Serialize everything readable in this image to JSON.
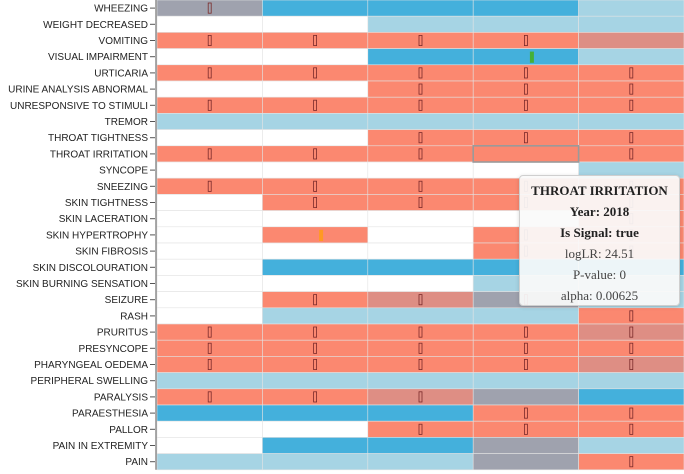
{
  "chart_data": {
    "type": "heatmap",
    "x": [
      "c1",
      "c2",
      "c3",
      "c4",
      "c5"
    ],
    "rows": [
      {
        "label": "WHEEZING",
        "cells": [
          "G",
          "B",
          "B",
          "B",
          "L"
        ],
        "marks": [
          1,
          0,
          0,
          0,
          0
        ]
      },
      {
        "label": "WEIGHT DECREASED",
        "cells": [
          "W",
          "W",
          "L",
          "L",
          "L"
        ],
        "marks": [
          0,
          0,
          0,
          0,
          0
        ]
      },
      {
        "label": "VOMITING",
        "cells": [
          "S",
          "S",
          "S",
          "S",
          "D"
        ],
        "marks": [
          1,
          1,
          1,
          1,
          0
        ]
      },
      {
        "label": "VISUAL IMPAIRMENT",
        "cells": [
          "W",
          "W",
          "B",
          "B",
          "L"
        ],
        "marks": [
          0,
          0,
          0,
          0,
          0
        ]
      },
      {
        "label": "URTICARIA",
        "cells": [
          "S",
          "S",
          "S",
          "S",
          "S"
        ],
        "marks": [
          1,
          1,
          1,
          1,
          1
        ]
      },
      {
        "label": "URINE ANALYSIS ABNORMAL",
        "cells": [
          "W",
          "W",
          "S",
          "S",
          "S"
        ],
        "marks": [
          0,
          0,
          1,
          1,
          1
        ]
      },
      {
        "label": "UNRESPONSIVE TO STIMULI",
        "cells": [
          "S",
          "S",
          "S",
          "S",
          "S"
        ],
        "marks": [
          1,
          1,
          1,
          1,
          1
        ]
      },
      {
        "label": "TREMOR",
        "cells": [
          "L",
          "L",
          "L",
          "L",
          "L"
        ],
        "marks": [
          0,
          0,
          0,
          0,
          0
        ]
      },
      {
        "label": "THROAT TIGHTNESS",
        "cells": [
          "W",
          "W",
          "S",
          "S",
          "S"
        ],
        "marks": [
          0,
          0,
          1,
          1,
          1
        ]
      },
      {
        "label": "THROAT IRRITATION",
        "cells": [
          "S",
          "S",
          "S",
          "S",
          "S"
        ],
        "marks": [
          1,
          1,
          1,
          0,
          1
        ]
      },
      {
        "label": "SYNCOPE",
        "cells": [
          "W",
          "W",
          "W",
          "W",
          "L"
        ],
        "marks": [
          0,
          0,
          0,
          0,
          0
        ]
      },
      {
        "label": "SNEEZING",
        "cells": [
          "S",
          "S",
          "S",
          "S",
          "S"
        ],
        "marks": [
          1,
          1,
          1,
          1,
          1
        ]
      },
      {
        "label": "SKIN TIGHTNESS",
        "cells": [
          "W",
          "S",
          "S",
          "S",
          "S"
        ],
        "marks": [
          0,
          1,
          1,
          1,
          1
        ]
      },
      {
        "label": "SKIN LACERATION",
        "cells": [
          "W",
          "W",
          "W",
          "W",
          "S"
        ],
        "marks": [
          0,
          0,
          0,
          0,
          1
        ]
      },
      {
        "label": "SKIN HYPERTROPHY",
        "cells": [
          "W",
          "S",
          "W",
          "S",
          "S"
        ],
        "marks": [
          0,
          0,
          0,
          1,
          1
        ]
      },
      {
        "label": "SKIN FIBROSIS",
        "cells": [
          "W",
          "W",
          "W",
          "S",
          "S"
        ],
        "marks": [
          0,
          0,
          0,
          1,
          1
        ]
      },
      {
        "label": "SKIN DISCOLOURATION",
        "cells": [
          "W",
          "B",
          "B",
          "B",
          "B"
        ],
        "marks": [
          0,
          0,
          0,
          0,
          0
        ]
      },
      {
        "label": "SKIN BURNING SENSATION",
        "cells": [
          "W",
          "W",
          "W",
          "L",
          "L"
        ],
        "marks": [
          0,
          0,
          0,
          0,
          0
        ]
      },
      {
        "label": "SEIZURE",
        "cells": [
          "W",
          "S",
          "D",
          "G",
          "L"
        ],
        "marks": [
          0,
          1,
          1,
          1,
          0
        ]
      },
      {
        "label": "RASH",
        "cells": [
          "W",
          "L",
          "L",
          "L",
          "S"
        ],
        "marks": [
          0,
          0,
          0,
          0,
          1
        ]
      },
      {
        "label": "PRURITUS",
        "cells": [
          "S",
          "S",
          "S",
          "S",
          "D"
        ],
        "marks": [
          1,
          1,
          1,
          1,
          1
        ]
      },
      {
        "label": "PRESYNCOPE",
        "cells": [
          "S",
          "S",
          "S",
          "S",
          "S"
        ],
        "marks": [
          1,
          1,
          1,
          1,
          1
        ]
      },
      {
        "label": "PHARYNGEAL OEDEMA",
        "cells": [
          "S",
          "S",
          "S",
          "S",
          "D"
        ],
        "marks": [
          1,
          1,
          1,
          1,
          1
        ]
      },
      {
        "label": "PERIPHERAL SWELLING",
        "cells": [
          "L",
          "L",
          "L",
          "L",
          "L"
        ],
        "marks": [
          0,
          0,
          0,
          0,
          0
        ]
      },
      {
        "label": "PARALYSIS",
        "cells": [
          "S",
          "S",
          "D",
          "G",
          "B"
        ],
        "marks": [
          1,
          1,
          1,
          0,
          0
        ]
      },
      {
        "label": "PARAESTHESIA",
        "cells": [
          "B",
          "B",
          "B",
          "S",
          "S"
        ],
        "marks": [
          0,
          0,
          0,
          1,
          1
        ]
      },
      {
        "label": "PALLOR",
        "cells": [
          "W",
          "W",
          "S",
          "S",
          "S"
        ],
        "marks": [
          0,
          0,
          1,
          1,
          1
        ]
      },
      {
        "label": "PAIN IN EXTREMITY",
        "cells": [
          "W",
          "B",
          "B",
          "G",
          "L"
        ],
        "marks": [
          0,
          0,
          0,
          0,
          0
        ]
      },
      {
        "label": "PAIN",
        "cells": [
          "L",
          "L",
          "L",
          "G",
          "S"
        ],
        "marks": [
          0,
          0,
          0,
          0,
          1
        ]
      }
    ],
    "highlights": [
      {
        "row": "VISUAL IMPAIRMENT",
        "column": 4,
        "color": "#44b038"
      },
      {
        "row": "SKIN HYPERTROPHY",
        "column": 2,
        "color": "#ff9922"
      }
    ],
    "selected": {
      "row": "THROAT IRRITATION",
      "column": 4
    },
    "colors": {
      "S": "#fb8870",
      "B": "#44b0dc",
      "L": "#a6d4e4",
      "G": "#9fa2ae",
      "D": "#de8e84",
      "W": "#ffffff",
      "mark": "#7a2a2a",
      "grid": "#e3e3e3"
    }
  },
  "tooltip": {
    "title": "THROAT IRRITATION",
    "year": "Year: 2018",
    "signal": "Is Signal: true",
    "loglr": "logLR: 24.51",
    "pvalue": "P-value: 0",
    "alpha": "alpha: 0.00625"
  }
}
